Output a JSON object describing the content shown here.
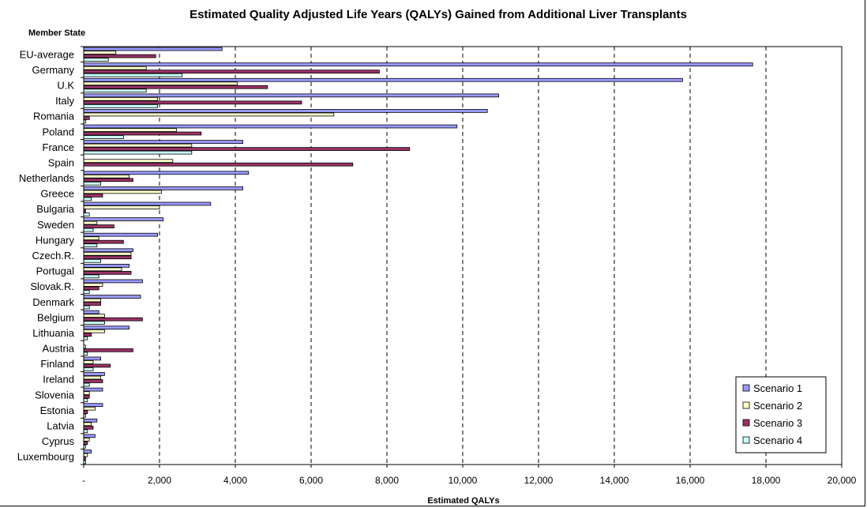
{
  "chart_data": {
    "type": "bar",
    "orientation": "horizontal",
    "title": "Estimated Quality Adjusted Life Years (QALYs) Gained from Additional Liver Transplants",
    "ylabel": "Member State",
    "xlabel": "Estimated QALYs",
    "xlim": [
      0,
      20000
    ],
    "xticks": [
      0,
      2000,
      4000,
      6000,
      8000,
      10000,
      12000,
      14000,
      16000,
      18000,
      20000
    ],
    "xtick_labels": [
      "-",
      "2,000",
      "4,000",
      "6,000",
      "8,000",
      "10,000",
      "12,000",
      "14,000",
      "16,000",
      "18,000",
      "20,000"
    ],
    "grid": "vertical dashed",
    "legend_position": "bottom-right",
    "categories": [
      "EU-average",
      "Germany",
      "U.K",
      "Italy",
      "Romania",
      "Poland",
      "France",
      "Spain",
      "Netherlands",
      "Greece",
      "Bulgaria",
      "Sweden",
      "Hungary",
      "Czech.R.",
      "Portugal",
      "Slovak.R.",
      "Denmark",
      "Belgium",
      "Lithuania",
      "Austria",
      "Finland",
      "Ireland",
      "Slovenia",
      "Estonia",
      "Latvia",
      "Cyprus",
      "Luxembourg"
    ],
    "series": [
      {
        "name": "Scenario 1",
        "color": "#9999ff",
        "values": [
          3650,
          17650,
          15800,
          10950,
          10650,
          9850,
          4200,
          0,
          4350,
          4200,
          3350,
          2100,
          1950,
          1300,
          1200,
          1550,
          1500,
          400,
          1200,
          0,
          450,
          550,
          500,
          500,
          350,
          300,
          200
        ]
      },
      {
        "name": "Scenario 2",
        "color": "#ffffcc",
        "values": [
          850,
          1650,
          4050,
          1950,
          6600,
          2450,
          2850,
          2350,
          1200,
          2050,
          2000,
          350,
          400,
          1250,
          1000,
          500,
          450,
          550,
          550,
          50,
          250,
          450,
          150,
          300,
          200,
          150,
          100
        ]
      },
      {
        "name": "Scenario 3",
        "color": "#993366",
        "values": [
          1900,
          7800,
          4850,
          5750,
          150,
          3100,
          8600,
          7100,
          1300,
          500,
          50,
          800,
          1050,
          1250,
          1250,
          400,
          450,
          1550,
          200,
          1300,
          700,
          500,
          150,
          100,
          250,
          100,
          50
        ]
      },
      {
        "name": "Scenario 4",
        "color": "#ccffff",
        "values": [
          650,
          2600,
          1650,
          1950,
          50,
          1050,
          2850,
          0,
          450,
          200,
          150,
          250,
          350,
          450,
          400,
          150,
          150,
          550,
          100,
          100,
          250,
          150,
          100,
          50,
          100,
          50,
          50
        ]
      }
    ]
  }
}
